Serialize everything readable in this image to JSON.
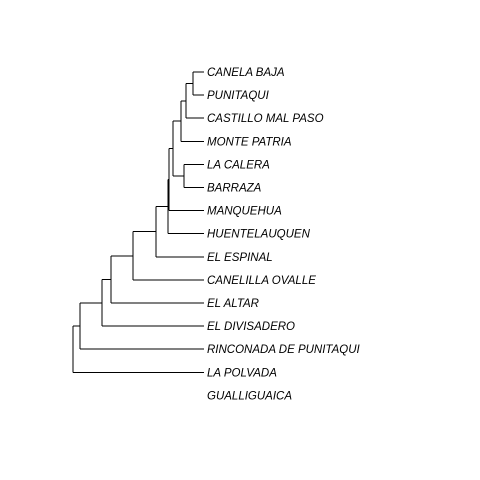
{
  "tree": {
    "type": "dendrogram",
    "orientation": "left-to-right",
    "leaves": [
      "CANELA BAJA",
      "PUNITAQUI",
      "CASTILLO MAL PASO",
      "MONTE PATRIA",
      "LA CALERA",
      "BARRAZA",
      "MANQUEHUA",
      "HUENTELAUQUEN",
      "EL ESPINAL",
      "CANELILLA OVALLE",
      "EL ALTAR",
      "EL DIVISADERO",
      "RINCONADA DE PUNITAQUI",
      "LA POLVADA",
      "GUALLIGUAICA"
    ],
    "structure": "(((((((((((CANELA BAJA,PUNITAQUI),CASTILLO MAL PASO),MONTE PATRIA),(LA CALERA,BARRAZA)),MANQUEHUA),HUENTELAUQUEN),EL ESPINAL),CANELILLA OVALLE),EL ALTAR),EL DIVISADERO),RINCONADA DE PUNITAQUI),LA POLVADA),GUALLIGUAICA)",
    "line_color": "#000000",
    "label_color": "#000000"
  }
}
